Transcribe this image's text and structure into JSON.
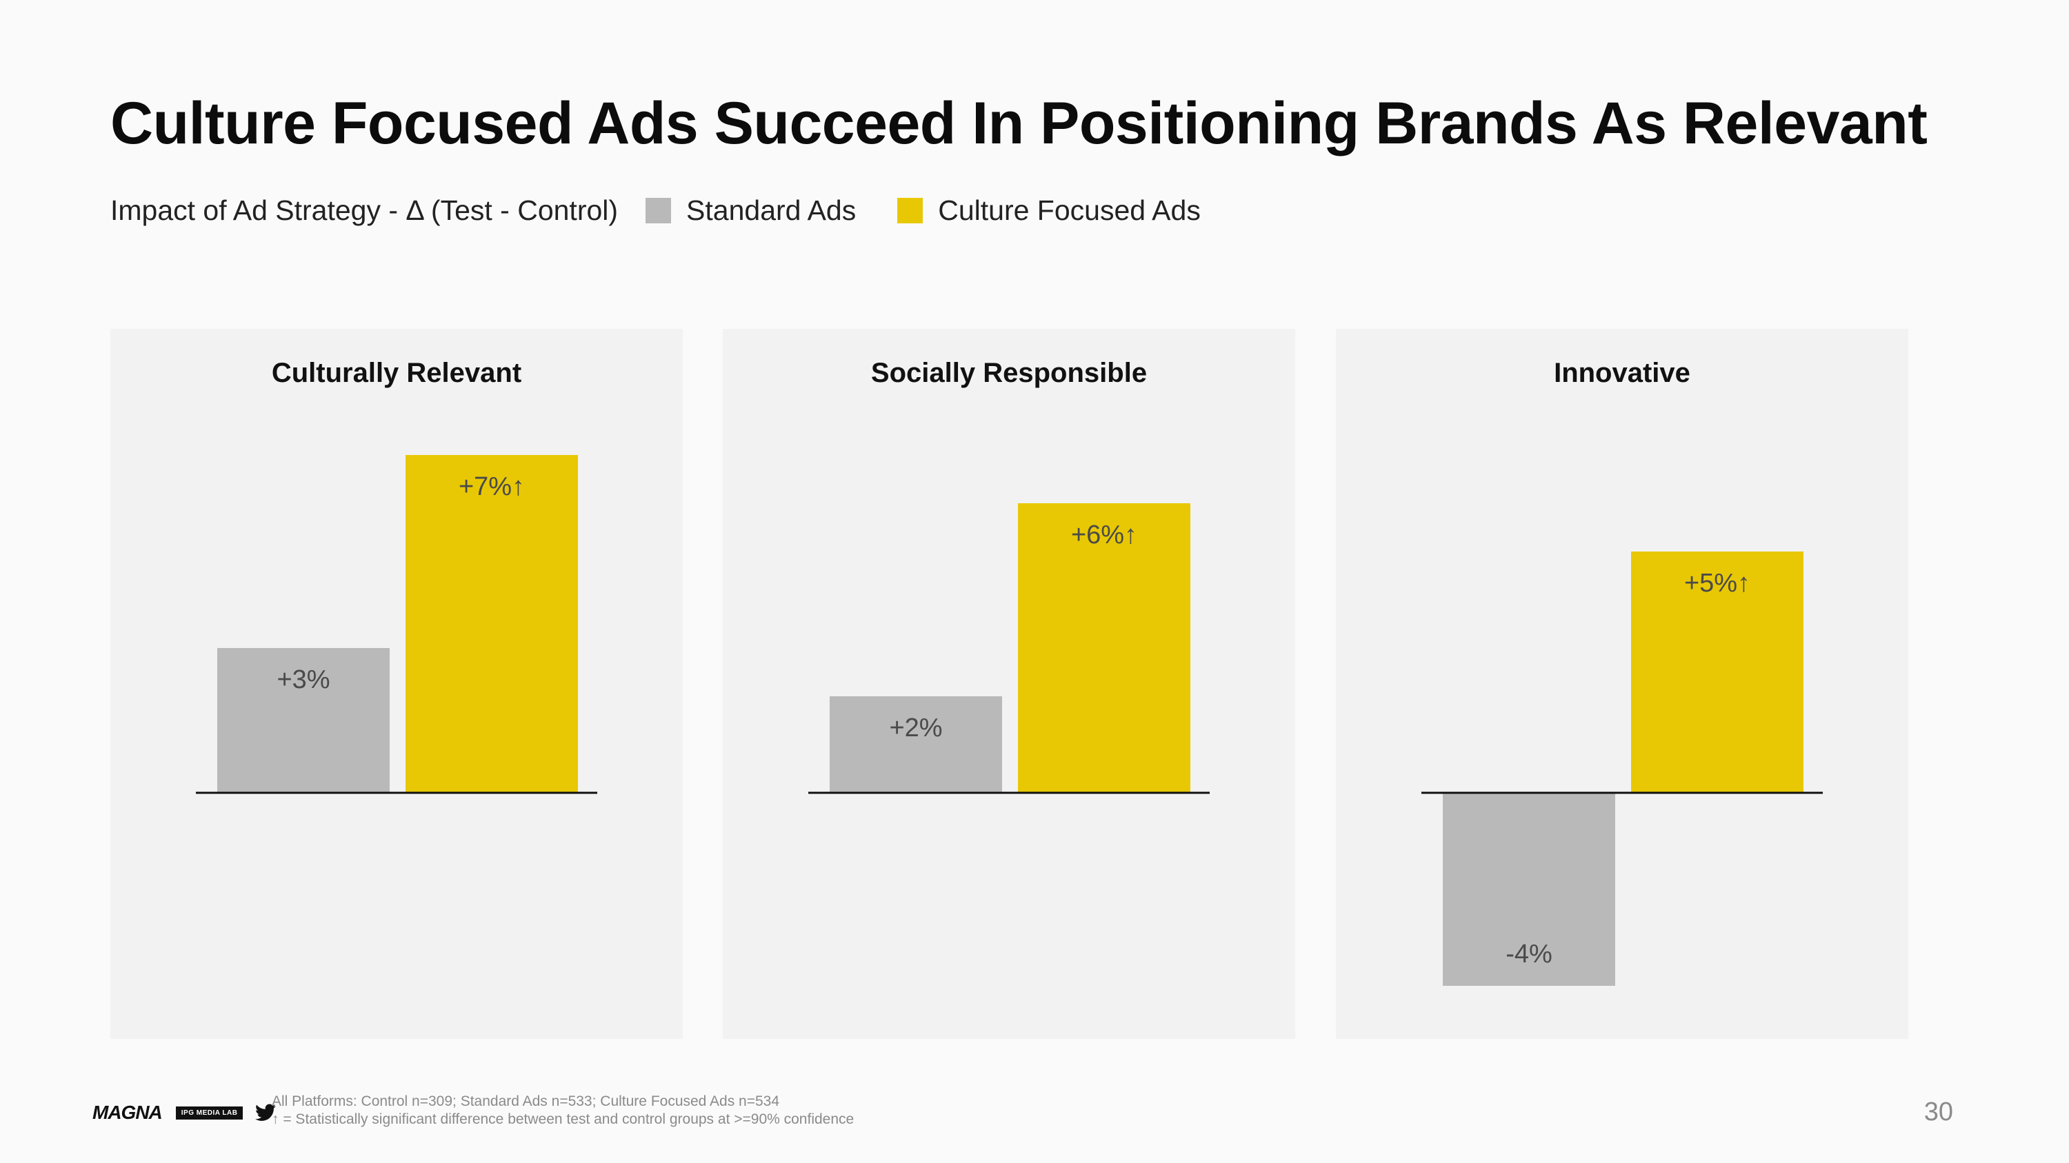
{
  "title": "Culture Focused Ads Succeed In Positioning Brands As Relevant",
  "subtitle": "Impact of Ad Strategy - Δ (Test - Control)",
  "legend": [
    {
      "label": "Standard Ads",
      "color": "#b9b9b9"
    },
    {
      "label": "Culture Focused Ads",
      "color": "#e8c804"
    }
  ],
  "chart_data": [
    {
      "type": "bar",
      "title": "Culturally Relevant",
      "categories": [
        "Standard Ads",
        "Culture Focused Ads"
      ],
      "values": [
        3,
        7
      ],
      "data_labels": [
        "+3%",
        "+7%↑"
      ],
      "ylim": [
        -4,
        7
      ]
    },
    {
      "type": "bar",
      "title": "Socially Responsible",
      "categories": [
        "Standard Ads",
        "Culture Focused Ads"
      ],
      "values": [
        2,
        6
      ],
      "data_labels": [
        "+2%",
        "+6%↑"
      ],
      "ylim": [
        -4,
        7
      ]
    },
    {
      "type": "bar",
      "title": "Innovative",
      "categories": [
        "Standard Ads",
        "Culture Focused Ads"
      ],
      "values": [
        -4,
        5
      ],
      "data_labels": [
        "-4%",
        "+5%↑"
      ],
      "ylim": [
        -4,
        7
      ]
    }
  ],
  "footer": {
    "logo_magna": "MAGNA",
    "logo_ipg": "IPG MEDIA LAB",
    "twitter_icon": "twitter-icon",
    "note1": "All Platforms: Control n=309; Standard Ads n=533; Culture Focused Ads n=534",
    "note2": "↑ = Statistically significant difference between test and control groups at >=90% confidence",
    "page_number": "30"
  }
}
